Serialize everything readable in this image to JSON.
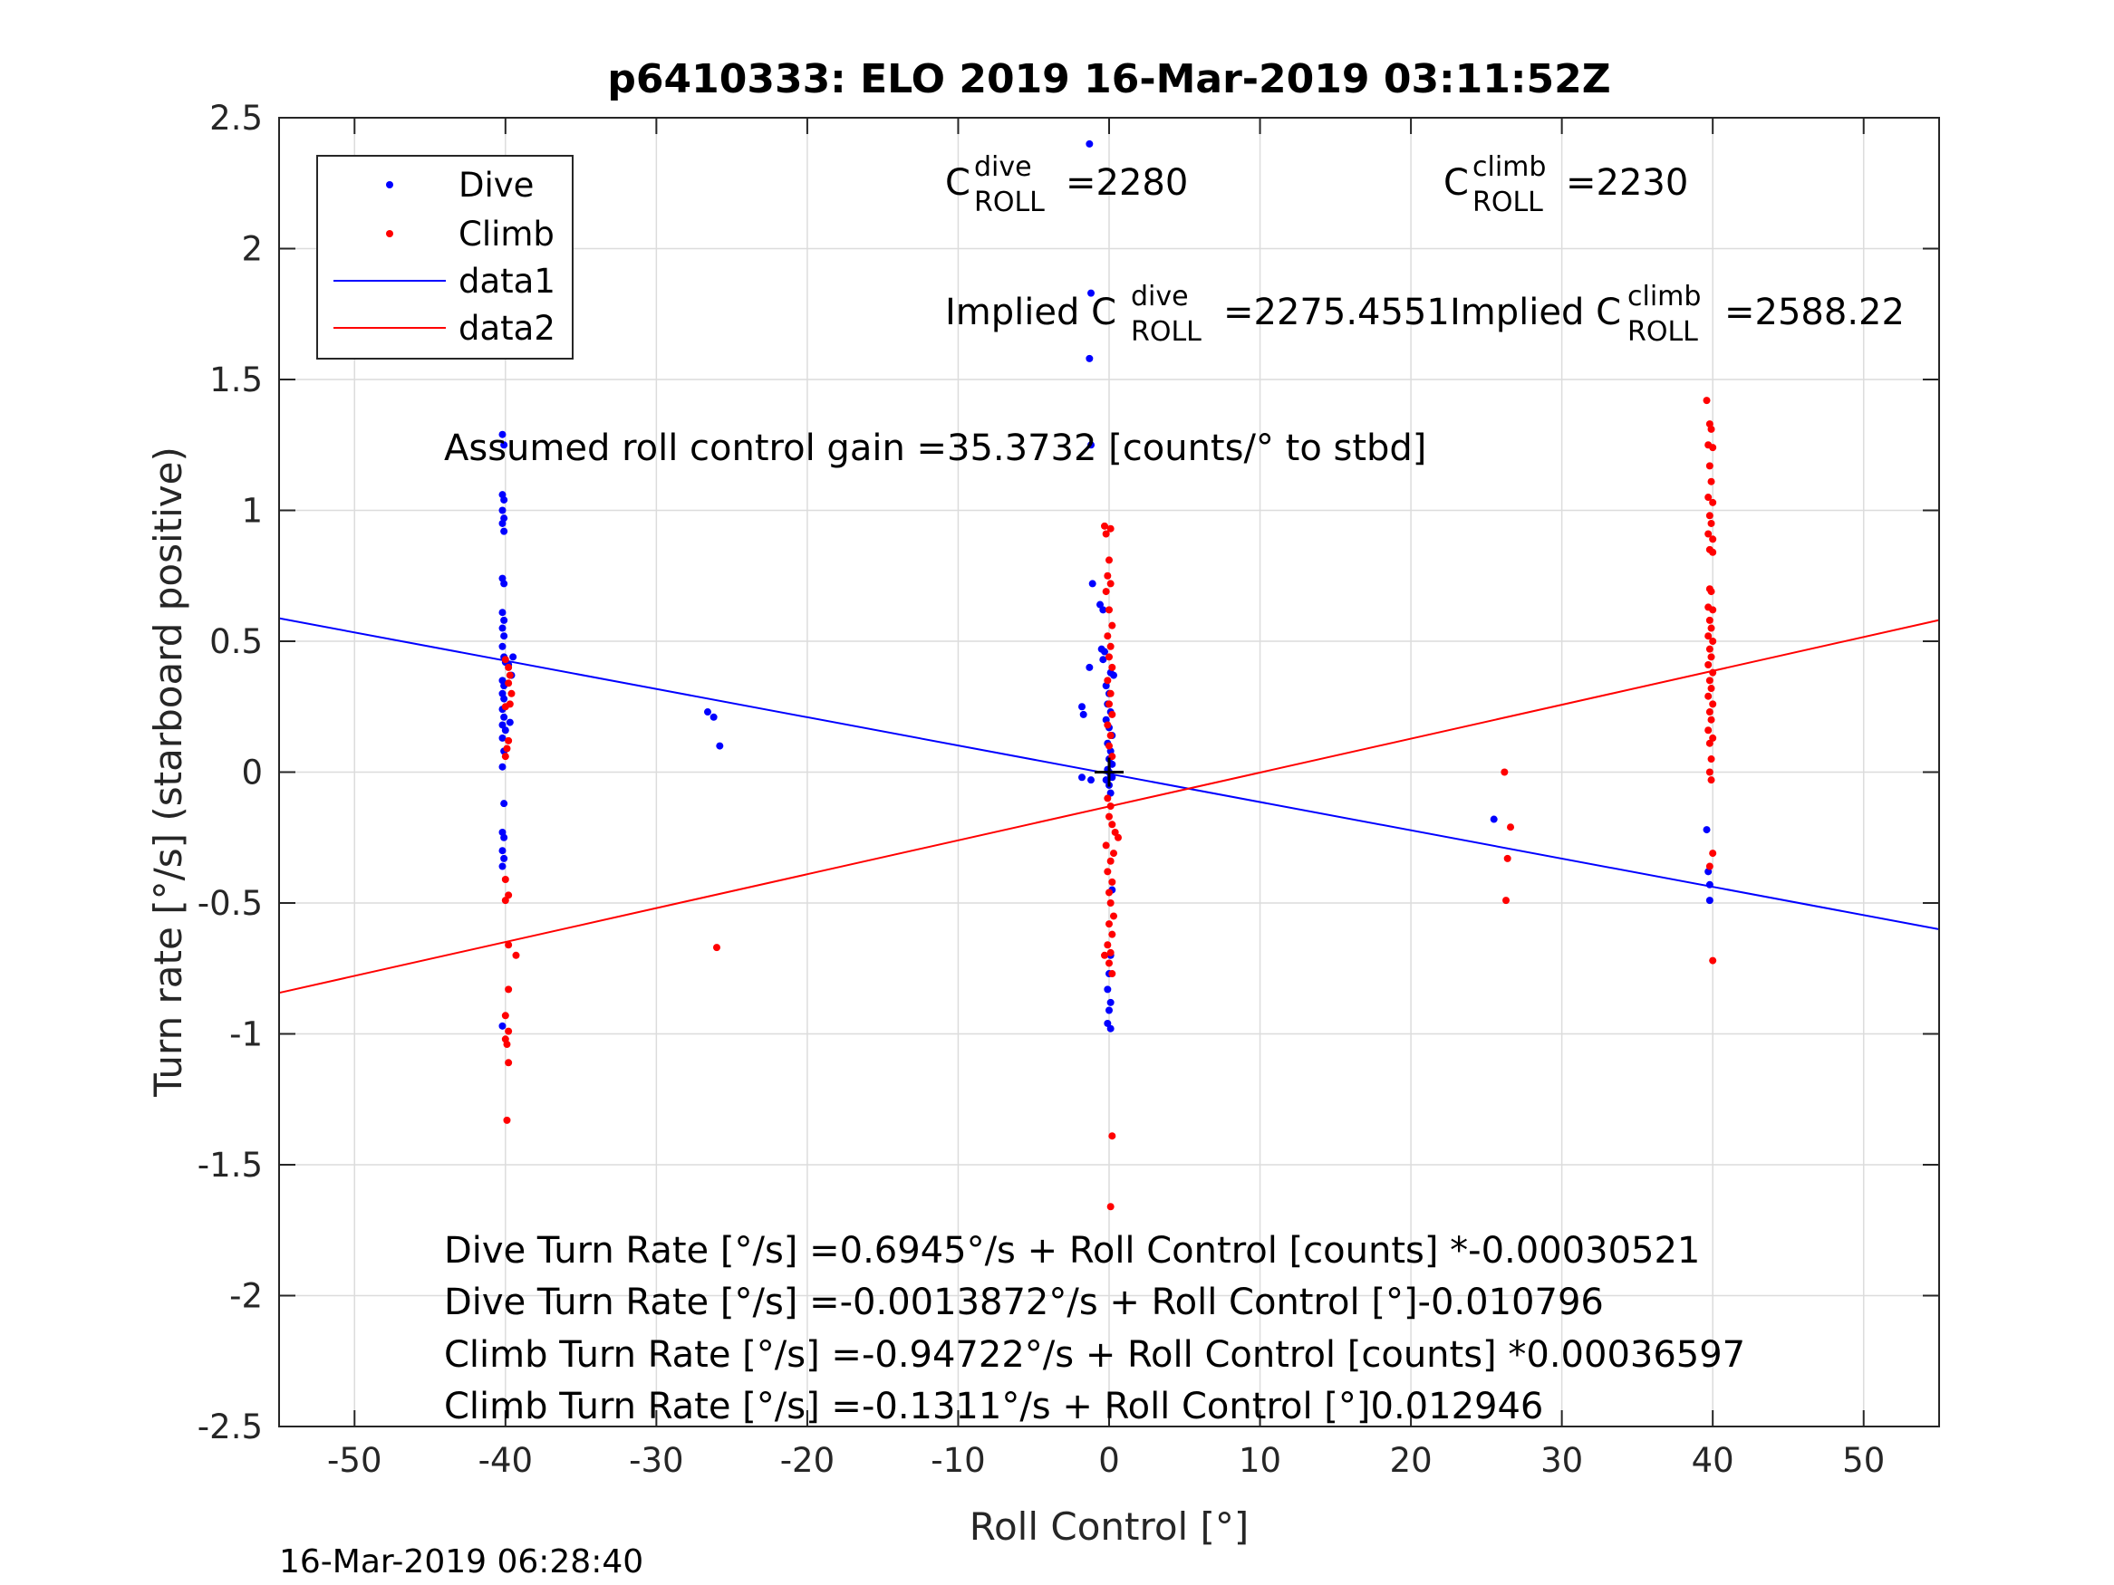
{
  "chart_data": {
    "type": "scatter",
    "title": "p6410333: ELO 2019 16-Mar-2019 03:11:52Z",
    "xlabel": "Roll Control [°]",
    "ylabel": "Turn rate [°/s] (starboard positive)",
    "xlim": [
      -55,
      55
    ],
    "ylim": [
      -2.5,
      2.5
    ],
    "xticks": [
      "-50",
      "-40",
      "-30",
      "-20",
      "-10",
      "0",
      "10",
      "20",
      "30",
      "40",
      "50"
    ],
    "yticks": [
      "-2.5",
      "-2",
      "-1.5",
      "-1",
      "-0.5",
      "0",
      "0.5",
      "1",
      "1.5",
      "2",
      "2.5"
    ],
    "grid": true,
    "legend_position": "top-left",
    "legend": [
      "Dive",
      "Climb",
      "data1",
      "data2"
    ],
    "colors": {
      "dive": "#0000ff",
      "climb": "#ff0000",
      "axis": "#262626",
      "grid": "#dcdcdc"
    },
    "series": [
      {
        "name": "Dive",
        "type": "scatter",
        "color": "#0000ff",
        "points": [
          [
            -40.2,
            1.29
          ],
          [
            -40.1,
            1.25
          ],
          [
            -40.2,
            1.06
          ],
          [
            -40.1,
            1.04
          ],
          [
            -40.2,
            1.0
          ],
          [
            -40.1,
            0.97
          ],
          [
            -40.2,
            0.95
          ],
          [
            -40.1,
            0.92
          ],
          [
            -40.2,
            0.74
          ],
          [
            -40.1,
            0.72
          ],
          [
            -40.2,
            0.61
          ],
          [
            -40.1,
            0.58
          ],
          [
            -40.2,
            0.55
          ],
          [
            -40.1,
            0.52
          ],
          [
            -40.2,
            0.48
          ],
          [
            -40.1,
            0.44
          ],
          [
            -40.0,
            0.42
          ],
          [
            -39.8,
            0.41
          ],
          [
            -39.5,
            0.44
          ],
          [
            -39.6,
            0.37
          ],
          [
            -40.2,
            0.35
          ],
          [
            -40.1,
            0.33
          ],
          [
            -40.2,
            0.3
          ],
          [
            -40.1,
            0.28
          ],
          [
            -40.2,
            0.24
          ],
          [
            -40.1,
            0.21
          ],
          [
            -40.2,
            0.18
          ],
          [
            -40.0,
            0.16
          ],
          [
            -39.7,
            0.19
          ],
          [
            -40.2,
            0.13
          ],
          [
            -40.1,
            0.08
          ],
          [
            -40.2,
            0.02
          ],
          [
            -40.1,
            -0.12
          ],
          [
            -40.2,
            -0.23
          ],
          [
            -40.1,
            -0.25
          ],
          [
            -40.2,
            -0.3
          ],
          [
            -40.1,
            -0.33
          ],
          [
            -40.2,
            -0.36
          ],
          [
            -40.2,
            -0.97
          ],
          [
            -26.6,
            0.23
          ],
          [
            -26.2,
            0.21
          ],
          [
            -25.8,
            0.1
          ],
          [
            -1.3,
            2.4
          ],
          [
            -1.2,
            1.83
          ],
          [
            -1.3,
            1.58
          ],
          [
            -1.2,
            1.25
          ],
          [
            -1.1,
            0.72
          ],
          [
            -1.3,
            0.4
          ],
          [
            -1.8,
            0.25
          ],
          [
            -1.7,
            0.22
          ],
          [
            -1.8,
            -0.02
          ],
          [
            -1.2,
            -0.03
          ],
          [
            -0.6,
            0.64
          ],
          [
            -0.4,
            0.62
          ],
          [
            -0.5,
            0.47
          ],
          [
            -0.3,
            0.46
          ],
          [
            -0.4,
            0.43
          ],
          [
            0.1,
            0.38
          ],
          [
            0.3,
            0.37
          ],
          [
            -0.2,
            0.33
          ],
          [
            0.0,
            0.3
          ],
          [
            -0.1,
            0.26
          ],
          [
            0.1,
            0.23
          ],
          [
            -0.2,
            0.2
          ],
          [
            0.0,
            0.17
          ],
          [
            0.2,
            0.14
          ],
          [
            -0.1,
            0.11
          ],
          [
            0.1,
            0.08
          ],
          [
            0.0,
            0.05
          ],
          [
            0.2,
            0.03
          ],
          [
            -0.1,
            0.01
          ],
          [
            0.0,
            0.0
          ],
          [
            0.1,
            -0.01
          ],
          [
            0.2,
            -0.02
          ],
          [
            -0.2,
            -0.03
          ],
          [
            0.0,
            -0.05
          ],
          [
            0.1,
            -0.08
          ],
          [
            0.2,
            -0.45
          ],
          [
            0.1,
            -0.7
          ],
          [
            0.0,
            -0.77
          ],
          [
            -0.1,
            -0.83
          ],
          [
            0.1,
            -0.88
          ],
          [
            0.0,
            -0.91
          ],
          [
            -0.1,
            -0.96
          ],
          [
            0.1,
            -0.98
          ],
          [
            25.5,
            -0.18
          ],
          [
            39.6,
            -0.22
          ],
          [
            39.7,
            -0.38
          ],
          [
            39.8,
            -0.43
          ],
          [
            39.8,
            -0.49
          ]
        ]
      },
      {
        "name": "Climb",
        "type": "scatter",
        "color": "#ff0000",
        "points": [
          [
            -40.0,
            0.43
          ],
          [
            -39.8,
            0.4
          ],
          [
            -39.7,
            0.37
          ],
          [
            -39.8,
            0.34
          ],
          [
            -39.6,
            0.3
          ],
          [
            -39.7,
            0.26
          ],
          [
            -40.0,
            0.25
          ],
          [
            -39.8,
            0.12
          ],
          [
            -39.9,
            0.09
          ],
          [
            -40.0,
            0.06
          ],
          [
            -40.0,
            -0.41
          ],
          [
            -39.8,
            -0.47
          ],
          [
            -40.0,
            -0.49
          ],
          [
            -39.8,
            -0.66
          ],
          [
            -39.3,
            -0.7
          ],
          [
            -39.8,
            -0.83
          ],
          [
            -40.0,
            -0.93
          ],
          [
            -39.8,
            -0.99
          ],
          [
            -40.0,
            -1.02
          ],
          [
            -39.9,
            -1.04
          ],
          [
            -39.8,
            -1.11
          ],
          [
            -39.9,
            -1.33
          ],
          [
            -26.0,
            -0.67
          ],
          [
            -0.3,
            0.94
          ],
          [
            0.1,
            0.93
          ],
          [
            -0.2,
            0.91
          ],
          [
            0.0,
            0.81
          ],
          [
            -0.1,
            0.75
          ],
          [
            0.1,
            0.72
          ],
          [
            -0.2,
            0.69
          ],
          [
            0.0,
            0.62
          ],
          [
            0.2,
            0.56
          ],
          [
            -0.1,
            0.52
          ],
          [
            0.1,
            0.48
          ],
          [
            0.0,
            0.44
          ],
          [
            0.2,
            0.4
          ],
          [
            -0.1,
            0.35
          ],
          [
            0.1,
            0.3
          ],
          [
            0.0,
            0.26
          ],
          [
            0.2,
            0.22
          ],
          [
            -0.1,
            0.18
          ],
          [
            0.1,
            0.14
          ],
          [
            0.0,
            0.1
          ],
          [
            0.2,
            0.06
          ],
          [
            -0.1,
            -0.1
          ],
          [
            0.1,
            -0.13
          ],
          [
            0.0,
            -0.17
          ],
          [
            0.2,
            -0.2
          ],
          [
            0.4,
            -0.23
          ],
          [
            0.6,
            -0.25
          ],
          [
            -0.2,
            -0.28
          ],
          [
            0.3,
            -0.31
          ],
          [
            0.1,
            -0.34
          ],
          [
            -0.1,
            -0.38
          ],
          [
            0.2,
            -0.42
          ],
          [
            0.0,
            -0.46
          ],
          [
            0.1,
            -0.5
          ],
          [
            0.3,
            -0.55
          ],
          [
            0.0,
            -0.58
          ],
          [
            0.2,
            -0.62
          ],
          [
            -0.1,
            -0.66
          ],
          [
            0.1,
            -0.69
          ],
          [
            -0.3,
            -0.7
          ],
          [
            0.0,
            -0.73
          ],
          [
            0.2,
            -0.77
          ],
          [
            0.2,
            -1.39
          ],
          [
            0.1,
            -1.66
          ],
          [
            26.2,
            0.0
          ],
          [
            26.6,
            -0.21
          ],
          [
            26.4,
            -0.33
          ],
          [
            26.3,
            -0.49
          ],
          [
            39.6,
            1.42
          ],
          [
            39.8,
            1.33
          ],
          [
            39.9,
            1.31
          ],
          [
            39.7,
            1.25
          ],
          [
            40.0,
            1.24
          ],
          [
            39.8,
            1.17
          ],
          [
            39.9,
            1.11
          ],
          [
            39.7,
            1.05
          ],
          [
            40.0,
            1.03
          ],
          [
            39.8,
            0.98
          ],
          [
            39.9,
            0.95
          ],
          [
            39.7,
            0.91
          ],
          [
            40.0,
            0.89
          ],
          [
            39.8,
            0.85
          ],
          [
            40.0,
            0.84
          ],
          [
            39.8,
            0.7
          ],
          [
            39.9,
            0.69
          ],
          [
            39.7,
            0.63
          ],
          [
            40.0,
            0.62
          ],
          [
            39.8,
            0.58
          ],
          [
            39.9,
            0.55
          ],
          [
            39.7,
            0.52
          ],
          [
            40.0,
            0.5
          ],
          [
            39.8,
            0.47
          ],
          [
            39.9,
            0.44
          ],
          [
            39.7,
            0.41
          ],
          [
            40.0,
            0.38
          ],
          [
            39.8,
            0.35
          ],
          [
            39.9,
            0.32
          ],
          [
            39.7,
            0.29
          ],
          [
            40.0,
            0.26
          ],
          [
            39.8,
            0.23
          ],
          [
            39.9,
            0.2
          ],
          [
            39.7,
            0.16
          ],
          [
            40.0,
            0.13
          ],
          [
            39.8,
            0.11
          ],
          [
            39.9,
            0.05
          ],
          [
            39.8,
            0.0
          ],
          [
            39.9,
            -0.03
          ],
          [
            40.0,
            -0.31
          ],
          [
            39.8,
            -0.36
          ],
          [
            40.0,
            -0.72
          ]
        ]
      },
      {
        "name": "data1",
        "type": "line",
        "color": "#0000ff",
        "x": [
          -55,
          55
        ],
        "y": [
          0.5877,
          -0.6003
        ]
      },
      {
        "name": "data2",
        "type": "line",
        "color": "#ff0000",
        "x": [
          -55,
          55
        ],
        "y": [
          -0.8432,
          0.581
        ]
      }
    ],
    "cross_marker": {
      "x": 0,
      "y": 0,
      "color": "#000000"
    },
    "annotations": {
      "c_dive": {
        "base": "C",
        "sup": "dive",
        "sub": "ROLL",
        "value": "=2280"
      },
      "c_climb": {
        "base": "C",
        "sup": "climb",
        "sub": "ROLL",
        "value": "=2230"
      },
      "implied_dive": {
        "prefix": "Implied C",
        "sup": "dive",
        "sub": "ROLL",
        "value": "=2275.4551"
      },
      "implied_climb": {
        "prefix": "Implied C",
        "sup": "climb",
        "sub": "ROLL",
        "value": "=2588.22"
      },
      "gain": "Assumed roll control gain =35.3732 [counts/° to stbd]",
      "eq1": "Dive Turn Rate [°/s] =0.6945°/s + Roll Control [counts] *-0.00030521",
      "eq2": "Dive Turn Rate [°/s] =-0.0013872°/s + Roll Control [°]-0.010796",
      "eq3": "Climb Turn Rate [°/s] =-0.94722°/s + Roll Control [counts] *0.00036597",
      "eq4": "Climb Turn Rate [°/s] =-0.1311°/s + Roll Control [°]0.012946"
    },
    "timestamp": "16-Mar-2019 06:28:40"
  }
}
